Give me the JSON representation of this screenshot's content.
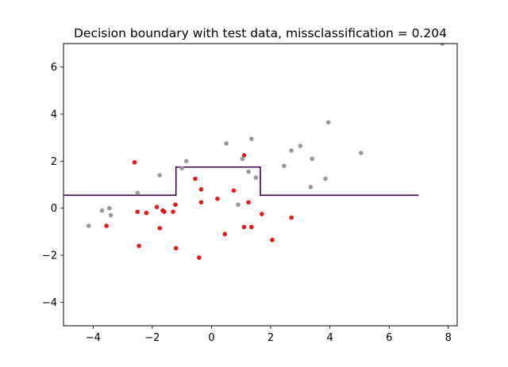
{
  "chart_data": {
    "type": "scatter",
    "title": "Decision boundary with test data, missclassification = 0.204",
    "xlabel": "",
    "ylabel": "",
    "xlim": [
      -5,
      8.3
    ],
    "ylim": [
      -5,
      7
    ],
    "xticks": [
      -4,
      -2,
      0,
      2,
      4,
      6,
      8
    ],
    "yticks": [
      -4,
      -2,
      0,
      2,
      4,
      6
    ],
    "xtick_labels": [
      "−4",
      "−2",
      "0",
      "2",
      "4",
      "6",
      "8"
    ],
    "ytick_labels": [
      "−4",
      "−2",
      "0",
      "2",
      "4",
      "6"
    ],
    "grid": false,
    "legend": "none",
    "colors": {
      "class_a": "#e41a1c",
      "class_b": "#999999",
      "boundary": "#440154"
    },
    "boundary": {
      "x": [
        -5,
        -1.2,
        -1.2,
        1.65,
        1.65,
        7.0
      ],
      "y": [
        0.55,
        0.55,
        1.75,
        1.75,
        0.55,
        0.55
      ]
    },
    "series": [
      {
        "color": "#e41a1c",
        "points": [
          [
            -2.6,
            1.95
          ],
          [
            -2.5,
            -0.15
          ],
          [
            -2.45,
            -1.6
          ],
          [
            -2.2,
            -0.2
          ],
          [
            -1.85,
            0.05
          ],
          [
            -1.75,
            -0.85
          ],
          [
            -1.65,
            -0.1
          ],
          [
            -1.6,
            -0.15
          ],
          [
            -1.3,
            -0.15
          ],
          [
            -1.22,
            0.15
          ],
          [
            -1.2,
            -1.7
          ],
          [
            -0.55,
            1.25
          ],
          [
            -0.42,
            -2.1
          ],
          [
            -0.35,
            0.25
          ],
          [
            -0.35,
            0.8
          ],
          [
            0.2,
            0.4
          ],
          [
            0.45,
            -1.1
          ],
          [
            0.75,
            0.75
          ],
          [
            1.1,
            2.25
          ],
          [
            1.1,
            -0.8
          ],
          [
            1.25,
            0.25
          ],
          [
            1.35,
            -0.8
          ],
          [
            1.7,
            -0.25
          ],
          [
            2.05,
            -1.35
          ],
          [
            2.7,
            -0.4
          ],
          [
            -3.55,
            -0.75
          ]
        ]
      },
      {
        "color": "#999999",
        "points": [
          [
            -4.15,
            -0.75
          ],
          [
            -3.7,
            -0.1
          ],
          [
            -3.45,
            0.0
          ],
          [
            -3.4,
            -0.3
          ],
          [
            -2.5,
            0.65
          ],
          [
            -1.75,
            1.4
          ],
          [
            -1.0,
            1.7
          ],
          [
            -0.85,
            2.0
          ],
          [
            0.5,
            2.75
          ],
          [
            0.9,
            0.15
          ],
          [
            1.05,
            2.1
          ],
          [
            1.25,
            1.55
          ],
          [
            1.35,
            2.95
          ],
          [
            1.5,
            1.3
          ],
          [
            2.45,
            1.8
          ],
          [
            2.7,
            2.45
          ],
          [
            3.0,
            2.65
          ],
          [
            3.35,
            0.9
          ],
          [
            3.4,
            2.1
          ],
          [
            3.85,
            1.25
          ],
          [
            3.95,
            3.65
          ],
          [
            5.05,
            2.35
          ],
          [
            7.8,
            7.0
          ]
        ]
      }
    ]
  }
}
